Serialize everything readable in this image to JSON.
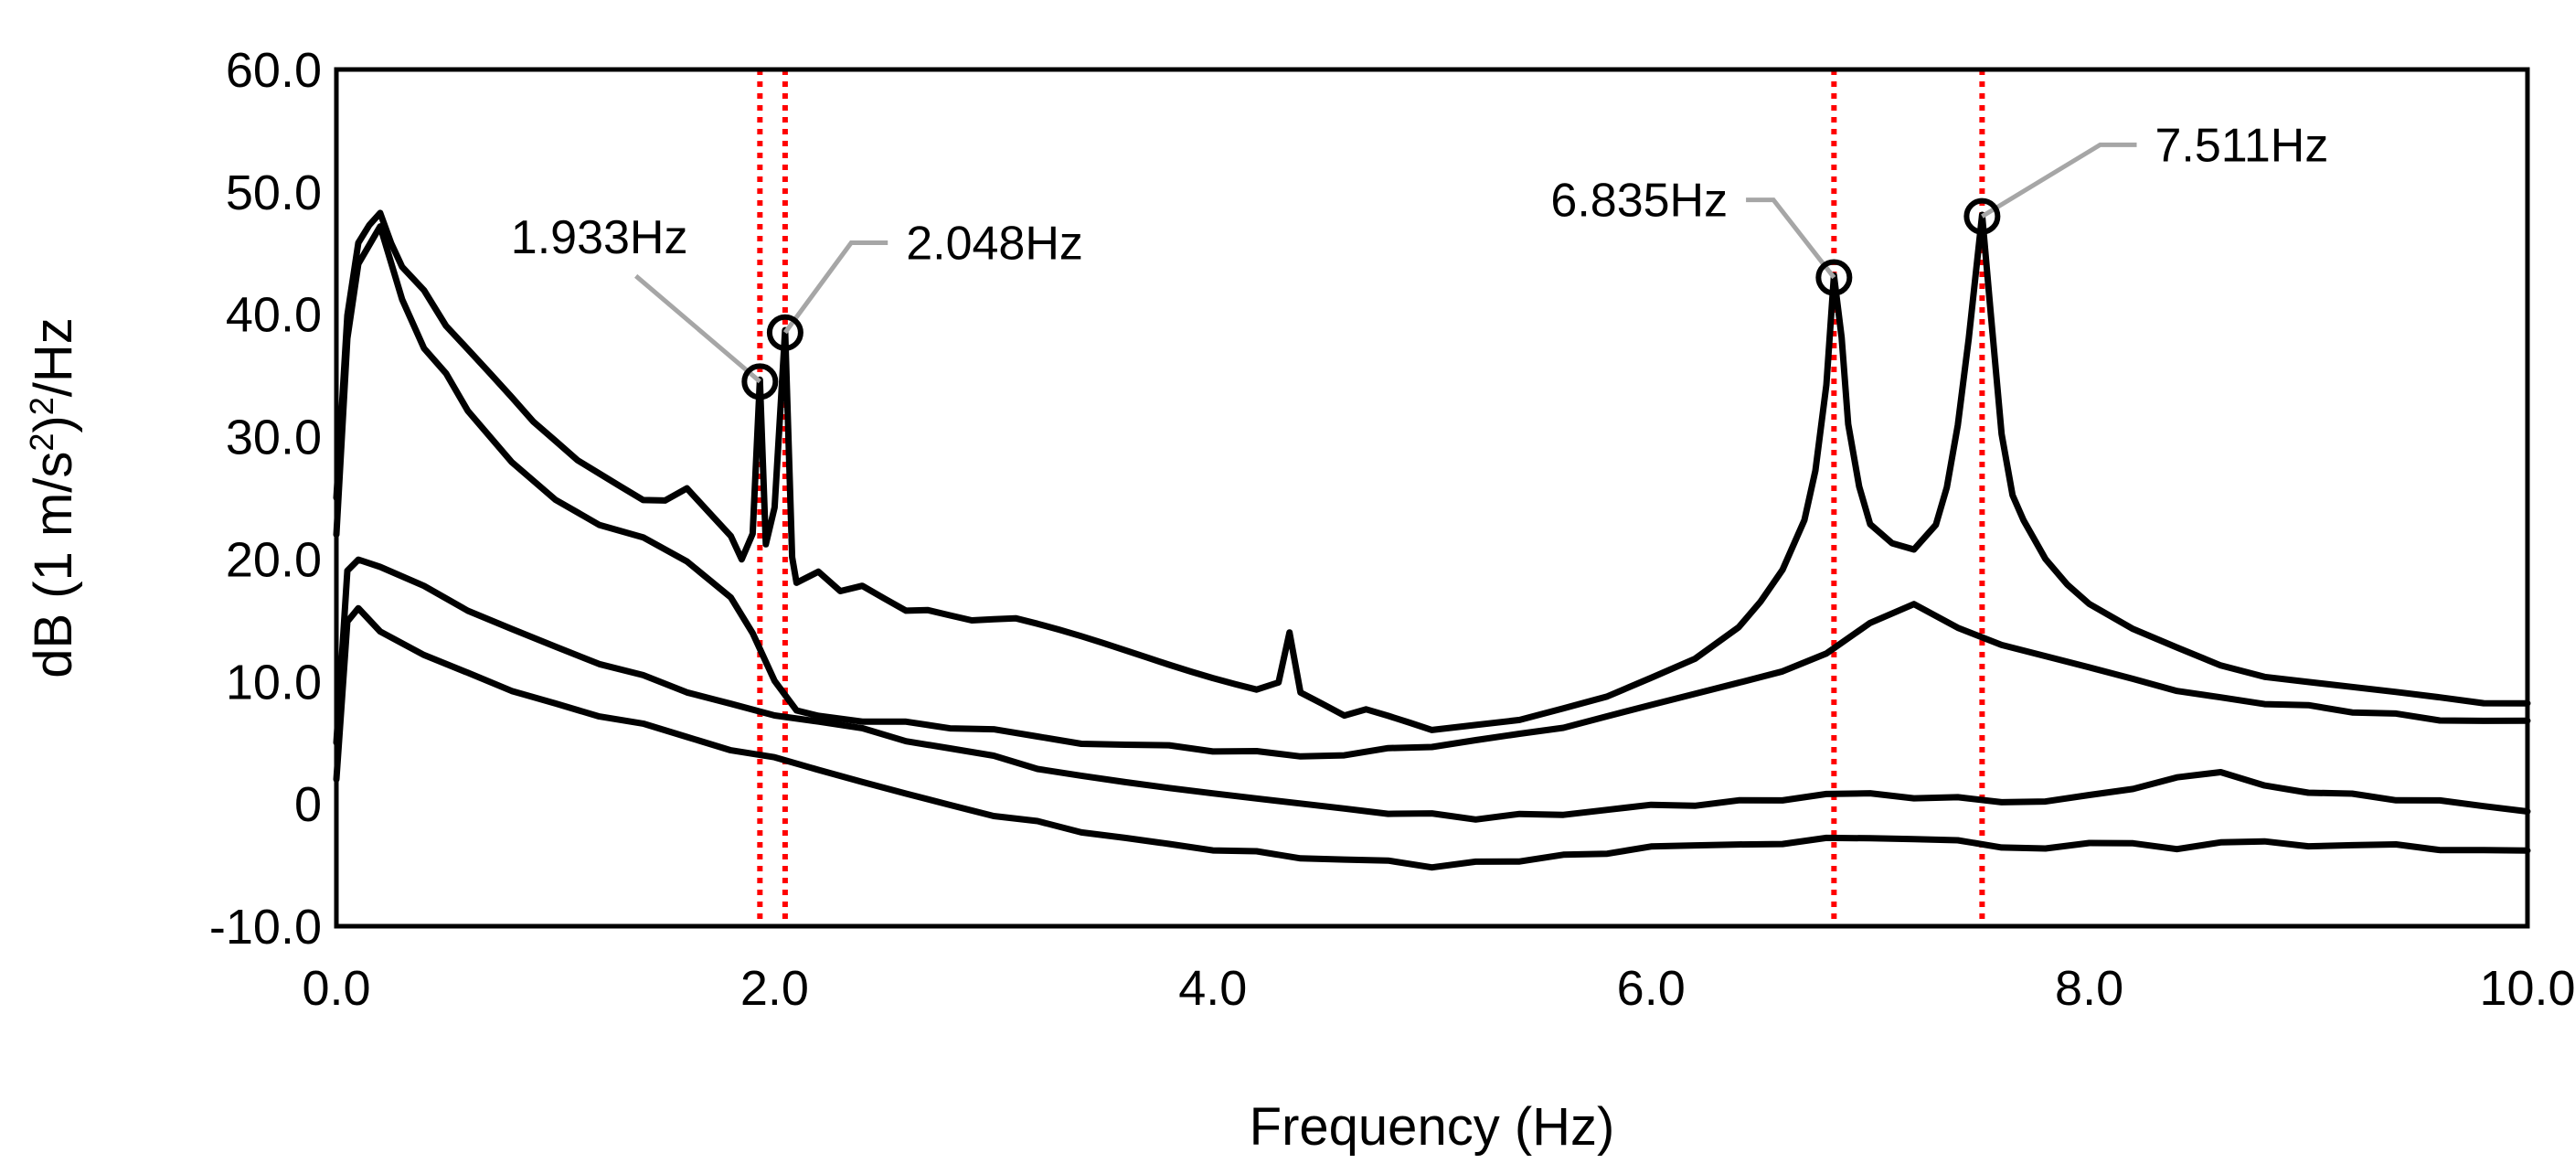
{
  "chart_data": {
    "type": "line",
    "title": "",
    "xlabel": "Frequency (Hz)",
    "ylabel_parts": [
      "dB (1 m/s",
      "2",
      ")",
      "2",
      "/Hz"
    ],
    "xlim": [
      0,
      10
    ],
    "ylim": [
      -10,
      60
    ],
    "x_ticks": [
      "0.0",
      "2.0",
      "4.0",
      "6.0",
      "8.0",
      "10.0"
    ],
    "y_ticks": [
      "-10.0",
      "0",
      "10.0",
      "20.0",
      "30.0",
      "40.0",
      "50.0",
      "60.0"
    ],
    "grid": false,
    "legend": "none",
    "line_color": "#000000",
    "series": [
      {
        "x": [
          0.0,
          0.05,
          0.1,
          0.15,
          0.2,
          0.25,
          0.3,
          0.4,
          0.5,
          0.6,
          0.7,
          0.8,
          0.9,
          1.0,
          1.1,
          1.2,
          1.3,
          1.4,
          1.5,
          1.6,
          1.7,
          1.8,
          1.85,
          1.9,
          1.933,
          1.96,
          2.0,
          2.048,
          2.08,
          2.1,
          2.2,
          2.3,
          2.4,
          2.5,
          2.6,
          2.7,
          2.8,
          2.9,
          3.0,
          3.1,
          3.2,
          3.3,
          3.4,
          3.5,
          3.6,
          3.7,
          3.8,
          3.9,
          4.0,
          4.1,
          4.2,
          4.3,
          4.35,
          4.4,
          4.5,
          4.6,
          4.7,
          4.8,
          4.9,
          5.0,
          5.2,
          5.4,
          5.6,
          5.8,
          6.0,
          6.2,
          6.4,
          6.5,
          6.6,
          6.7,
          6.75,
          6.8,
          6.835,
          6.87,
          6.9,
          6.95,
          7.0,
          7.1,
          7.2,
          7.3,
          7.35,
          7.4,
          7.45,
          7.511,
          7.55,
          7.6,
          7.65,
          7.7,
          7.75,
          7.8,
          7.9,
          8.0,
          8.2,
          8.4,
          8.6,
          8.8,
          9.0,
          9.2,
          9.4,
          9.6,
          9.8,
          10.0
        ],
        "y": [
          25.0,
          40.0,
          46.0,
          47.5,
          48.5,
          46.0,
          44.0,
          42.0,
          39.0,
          37.0,
          35.0,
          33.0,
          31.0,
          29.5,
          28.0,
          27.0,
          26.0,
          25.0,
          25.0,
          26.0,
          24.0,
          22.0,
          20.0,
          22.0,
          34.5,
          21.0,
          24.0,
          38.5,
          20.0,
          18.0,
          19.0,
          17.5,
          18.0,
          17.0,
          16.0,
          16.0,
          15.5,
          15.0,
          15.0,
          15.0,
          14.5,
          14.0,
          13.5,
          13.0,
          12.5,
          12.0,
          11.5,
          11.0,
          10.5,
          10.0,
          9.5,
          10.0,
          14.0,
          9.0,
          8.0,
          7.0,
          7.5,
          7.0,
          6.5,
          6.0,
          6.5,
          7.0,
          8.0,
          9.0,
          10.5,
          12.0,
          14.5,
          16.5,
          19.0,
          23.0,
          27.0,
          34.0,
          43.0,
          38.0,
          31.0,
          26.0,
          23.0,
          21.5,
          21.0,
          23.0,
          26.0,
          31.0,
          38.0,
          48.0,
          40.0,
          30.0,
          25.0,
          23.0,
          21.5,
          20.0,
          18.0,
          16.5,
          14.5,
          13.0,
          11.5,
          10.5,
          10.0,
          9.5,
          9.0,
          8.5,
          8.0,
          8.0
        ]
      },
      {
        "x": [
          0.0,
          0.05,
          0.1,
          0.2,
          0.3,
          0.4,
          0.5,
          0.6,
          0.7,
          0.8,
          1.0,
          1.2,
          1.4,
          1.6,
          1.8,
          1.9,
          2.0,
          2.1,
          2.2,
          2.4,
          2.6,
          2.8,
          3.0,
          3.2,
          3.4,
          3.6,
          3.8,
          4.0,
          4.2,
          4.4,
          4.6,
          4.8,
          5.0,
          5.2,
          5.4,
          5.6,
          5.8,
          6.0,
          6.2,
          6.4,
          6.6,
          6.8,
          7.0,
          7.2,
          7.4,
          7.6,
          7.8,
          8.0,
          8.2,
          8.4,
          8.6,
          8.8,
          9.0,
          9.2,
          9.4,
          9.6,
          9.8,
          10.0
        ],
        "y": [
          22.0,
          38.0,
          44.0,
          47.0,
          41.0,
          37.0,
          35.0,
          32.0,
          30.0,
          28.0,
          25.0,
          23.0,
          22.0,
          20.0,
          17.0,
          14.0,
          10.0,
          7.5,
          7.0,
          6.5,
          6.5,
          6.0,
          6.0,
          5.5,
          5.0,
          5.0,
          5.0,
          4.5,
          4.5,
          4.0,
          4.0,
          4.5,
          4.5,
          5.0,
          5.5,
          6.0,
          7.0,
          8.0,
          9.0,
          10.0,
          11.0,
          12.5,
          15.0,
          16.5,
          14.5,
          13.0,
          12.0,
          11.0,
          10.0,
          9.0,
          8.5,
          8.0,
          8.0,
          7.5,
          7.5,
          7.0,
          7.0,
          7.0
        ]
      },
      {
        "x": [
          0.0,
          0.05,
          0.1,
          0.2,
          0.4,
          0.6,
          0.8,
          1.0,
          1.2,
          1.4,
          1.6,
          1.8,
          2.0,
          2.2,
          2.4,
          2.6,
          2.8,
          3.0,
          3.2,
          3.4,
          3.6,
          3.8,
          4.0,
          4.2,
          4.4,
          4.6,
          4.8,
          5.0,
          5.2,
          5.4,
          5.6,
          5.8,
          6.0,
          6.2,
          6.4,
          6.6,
          6.8,
          7.0,
          7.2,
          7.4,
          7.6,
          7.8,
          8.0,
          8.2,
          8.4,
          8.6,
          8.8,
          9.0,
          9.2,
          9.4,
          9.6,
          9.8,
          10.0
        ],
        "y": [
          5.0,
          19.0,
          20.0,
          19.5,
          18.0,
          16.0,
          14.5,
          13.0,
          11.5,
          10.5,
          9.0,
          8.0,
          7.0,
          6.5,
          6.0,
          5.0,
          4.5,
          4.0,
          3.0,
          2.5,
          2.0,
          1.5,
          1.0,
          0.5,
          0.0,
          -0.5,
          -1.0,
          -1.0,
          -1.5,
          -1.0,
          -1.0,
          -0.5,
          0.0,
          0.0,
          0.5,
          0.5,
          1.0,
          1.0,
          0.5,
          0.5,
          0.0,
          0.0,
          0.5,
          1.0,
          2.0,
          2.5,
          1.5,
          1.0,
          1.0,
          0.5,
          0.5,
          0.0,
          -0.5
        ]
      },
      {
        "x": [
          0.0,
          0.05,
          0.1,
          0.2,
          0.4,
          0.6,
          0.8,
          1.0,
          1.2,
          1.4,
          1.6,
          1.8,
          2.0,
          2.2,
          2.4,
          2.6,
          2.8,
          3.0,
          3.2,
          3.4,
          3.6,
          3.8,
          4.0,
          4.2,
          4.4,
          4.6,
          4.8,
          5.0,
          5.2,
          5.4,
          5.6,
          5.8,
          6.0,
          6.2,
          6.4,
          6.6,
          6.8,
          7.0,
          7.2,
          7.4,
          7.6,
          7.8,
          8.0,
          8.2,
          8.4,
          8.6,
          8.8,
          9.0,
          9.2,
          9.4,
          9.6,
          9.8,
          10.0
        ],
        "y": [
          2.0,
          15.0,
          16.0,
          14.0,
          12.0,
          10.5,
          9.0,
          8.0,
          7.0,
          6.5,
          5.5,
          4.5,
          4.0,
          3.0,
          2.0,
          1.0,
          0.0,
          -1.0,
          -1.5,
          -2.5,
          -3.0,
          -3.5,
          -4.0,
          -4.0,
          -4.5,
          -4.5,
          -4.5,
          -5.0,
          -4.5,
          -4.5,
          -4.0,
          -4.0,
          -3.5,
          -3.5,
          -3.5,
          -3.5,
          -3.0,
          -3.0,
          -3.0,
          -3.0,
          -3.5,
          -3.5,
          -3.0,
          -3.0,
          -3.5,
          -3.0,
          -3.0,
          -3.5,
          -3.5,
          -3.5,
          -4.0,
          -4.0,
          -4.0
        ]
      }
    ],
    "marker_lines": [
      {
        "x": 1.933,
        "color": "#ff0000",
        "style": "dotted"
      },
      {
        "x": 2.048,
        "color": "#ff0000",
        "style": "dotted"
      },
      {
        "x": 6.835,
        "color": "#ff0000",
        "style": "dotted"
      },
      {
        "x": 7.511,
        "color": "#ff0000",
        "style": "dotted"
      }
    ],
    "peak_annotations": [
      {
        "label": "1.933Hz",
        "x": 1.933,
        "y": 34.5,
        "label_x": 1.2,
        "label_y": 45.0,
        "anchor": "middle"
      },
      {
        "label": "2.048Hz",
        "x": 2.048,
        "y": 38.5,
        "label_x": 2.6,
        "label_y": 44.5,
        "anchor": "start"
      },
      {
        "label": "6.835Hz",
        "x": 6.835,
        "y": 43.0,
        "label_x": 6.35,
        "label_y": 48.0,
        "anchor": "end"
      },
      {
        "label": "7.511Hz",
        "x": 7.511,
        "y": 48.0,
        "label_x": 8.3,
        "label_y": 52.5,
        "anchor": "start"
      }
    ],
    "annotation_leader_color": "#a6a6a6"
  }
}
